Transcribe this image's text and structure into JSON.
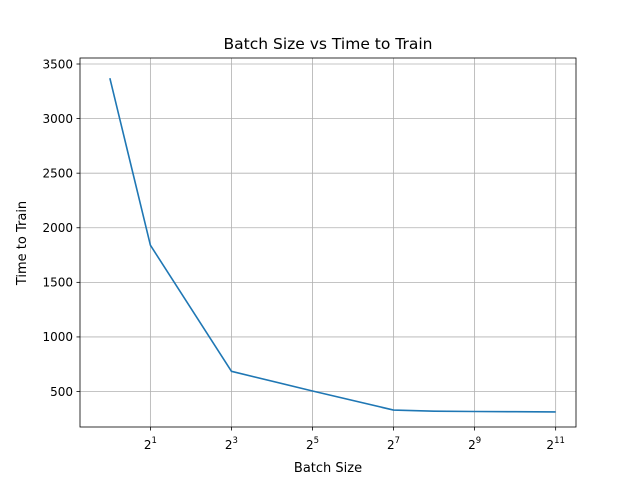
{
  "chart_data": {
    "type": "line",
    "title": "Batch Size vs Time to Train",
    "xlabel": "Batch Size",
    "ylabel": "Time to Train",
    "x_scale": "log2",
    "x_base_label": "2",
    "x_ticks_exponents": [
      "1",
      "3",
      "5",
      "7",
      "9",
      "11"
    ],
    "y_ticks": [
      "500",
      "1000",
      "1500",
      "2000",
      "2500",
      "3000",
      "3500"
    ],
    "xlim": [
      0.6,
      2900
    ],
    "ylim": [
      175,
      3555
    ],
    "grid": true,
    "legend": "none",
    "series": [
      {
        "color": "#1f77b4",
        "x": [
          1,
          2,
          8,
          32,
          128,
          256,
          512,
          1024,
          2048
        ],
        "y": [
          3370,
          1840,
          685,
          505,
          330,
          320,
          317,
          315,
          313
        ]
      }
    ]
  }
}
